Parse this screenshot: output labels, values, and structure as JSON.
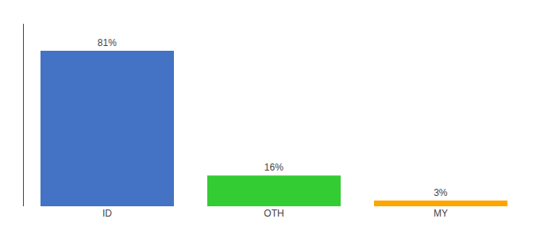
{
  "chart_data": {
    "type": "bar",
    "categories": [
      "ID",
      "OTH",
      "MY"
    ],
    "values": [
      81,
      16,
      3
    ],
    "value_labels": [
      "81%",
      "16%",
      "3%"
    ],
    "data_labels": true,
    "colors": [
      "#4472c4",
      "#33cc33",
      "#ffa500"
    ],
    "ylim": [
      0,
      95
    ],
    "tick_labels": "x",
    "grid": false
  }
}
